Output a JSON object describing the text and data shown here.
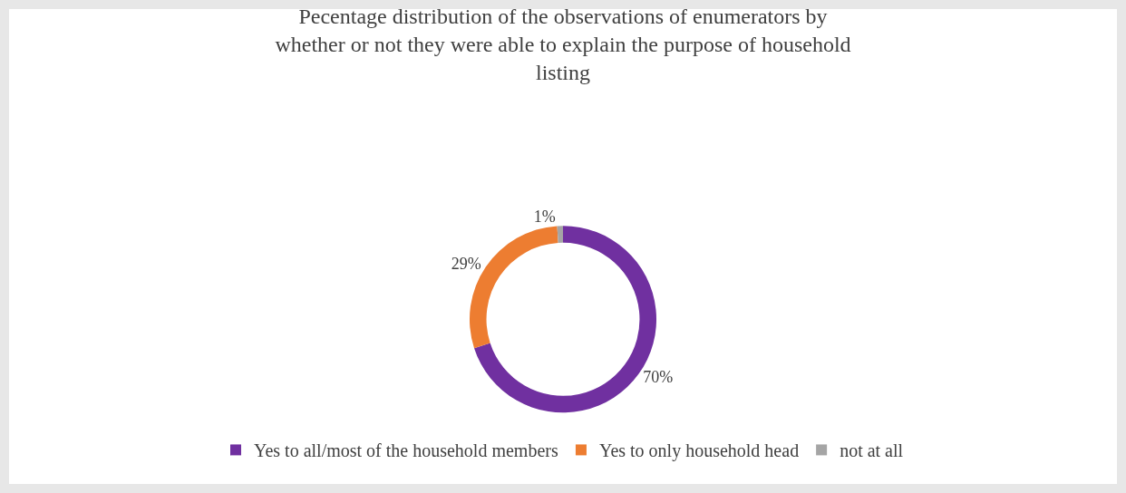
{
  "chart_data": {
    "type": "donut",
    "title": "Pecentage distribution of the observations of enumerators by whether or not they were able to explain the purpose of household listing",
    "categories": [
      "Yes to all/most of the household members",
      "Yes to only household head",
      "not at all"
    ],
    "values": [
      70,
      29,
      1
    ],
    "colors": [
      "#7030a0",
      "#ed7d31",
      "#a5a5a5"
    ],
    "value_labels": [
      "70%",
      "29%",
      "1%"
    ],
    "legend": "bottom"
  }
}
